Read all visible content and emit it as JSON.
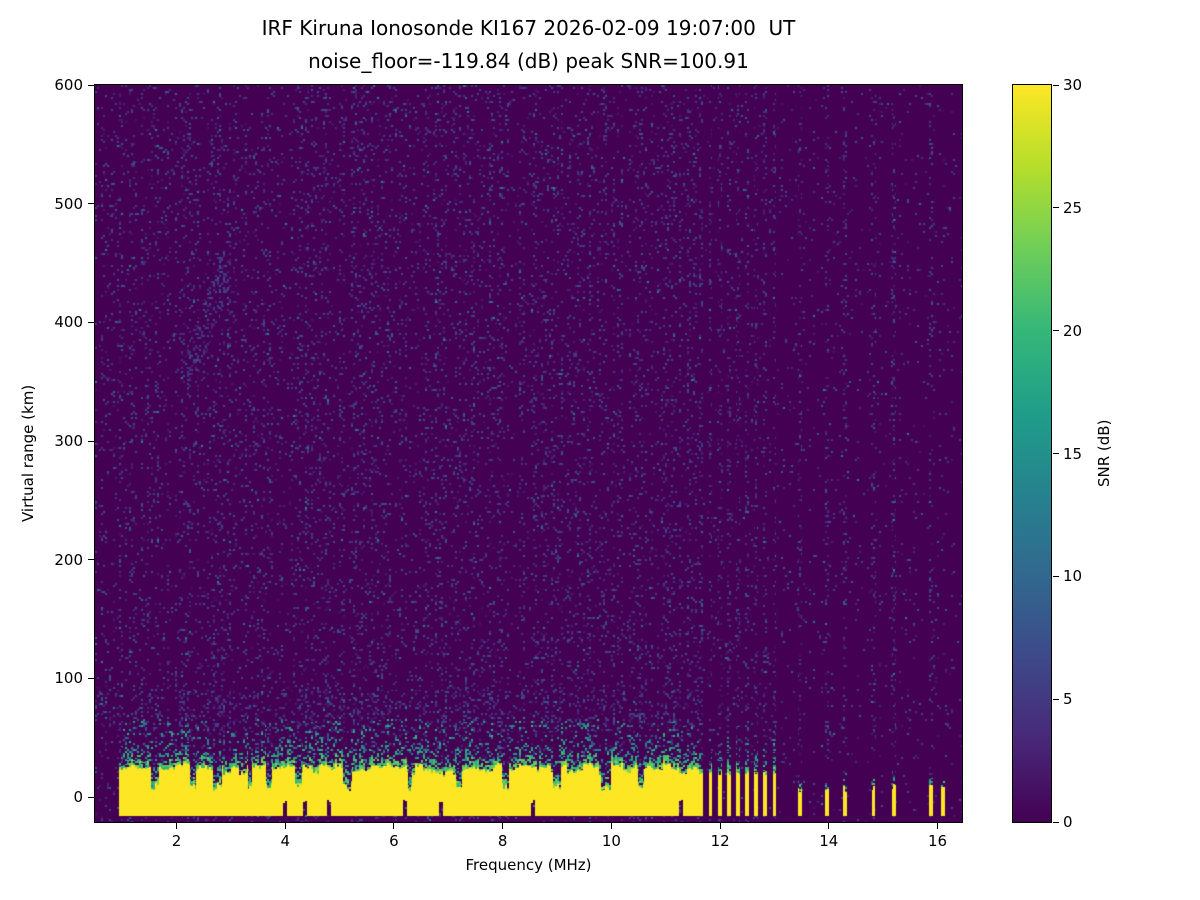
{
  "chart_data": {
    "type": "heatmap",
    "title": "IRF Kiruna Ionosonde KI167 2026-02-09 19:07:00  UT",
    "subtitle": "noise_floor=-119.84 (dB) peak SNR=100.91",
    "xlabel": "Frequency (MHz)",
    "ylabel": "Virtual range (km)",
    "xlim": [
      0.5,
      16.45
    ],
    "ylim": [
      -21,
      600
    ],
    "xticks": [
      2,
      4,
      6,
      8,
      10,
      12,
      14,
      16
    ],
    "yticks": [
      0,
      100,
      200,
      300,
      400,
      500,
      600
    ],
    "noise_floor_db": -119.84,
    "peak_snr_db": 100.91,
    "colorbar": {
      "label": "SNR (dB)",
      "range": [
        0,
        30
      ],
      "ticks": [
        0,
        5,
        10,
        15,
        20,
        25,
        30
      ],
      "colormap": "viridis",
      "colormap_stops": [
        "#440154",
        "#482878",
        "#3e4989",
        "#31688e",
        "#26828e",
        "#1f9e89",
        "#35b779",
        "#6ece58",
        "#b5de2b",
        "#fde725"
      ]
    },
    "features": {
      "background_snr_db": 0,
      "ground_echo_band": {
        "freq_start": 0.95,
        "freq_end": 11.62,
        "range_bottom": -16,
        "range_top_yellow": 24,
        "speckle_top": 60,
        "snr_db": 30
      },
      "band_notches_mhz": [
        1.6,
        2.3,
        2.75,
        3.35,
        3.7,
        4.25,
        5.15,
        6.3,
        7.2,
        8.05,
        9.0,
        9.9,
        10.55
      ],
      "broken_band": {
        "freq_start": 11.62,
        "freq_end": 13.05,
        "period_mhz": 0.168,
        "duty": 0.42,
        "range_top_yellow": 18
      },
      "isolated_pulses_mhz": [
        13.47,
        13.97,
        14.3,
        14.82,
        15.2,
        15.88,
        16.1
      ],
      "pulse_range_top": 8,
      "noise_columns_mhz": [
        13.47,
        13.97,
        14.3,
        14.82,
        15.2,
        15.88
      ],
      "faint_trace": {
        "freq_start": 2.2,
        "freq_end": 3.0,
        "range_start": 355,
        "range_end": 455
      }
    }
  }
}
